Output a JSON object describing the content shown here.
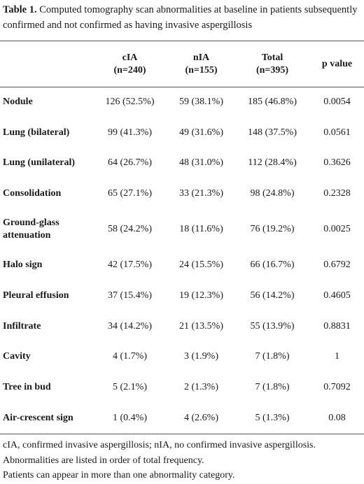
{
  "caption": {
    "label": "Table 1.",
    "text": " Computed tomography scan abnormalities at baseline in patients subsequently confirmed and not confirmed as having invasive aspergillosis"
  },
  "table": {
    "headers": [
      {
        "line1": "",
        "line2": ""
      },
      {
        "line1": "cIA",
        "line2": "(n=240)"
      },
      {
        "line1": "nIA",
        "line2": "(n=155)"
      },
      {
        "line1": "Total",
        "line2": "(n=395)"
      },
      {
        "line1": "",
        "line2": "p value"
      }
    ],
    "rows": [
      {
        "label": "Nodule",
        "cia": "126 (52.5%)",
        "nia": "59 (38.1%)",
        "total": "185 (46.8%)",
        "p": "0.0054"
      },
      {
        "label": "Lung (bilateral)",
        "cia": "99 (41.3%)",
        "nia": "49 (31.6%)",
        "total": "148 (37.5%)",
        "p": "0.0561"
      },
      {
        "label": "Lung (unilateral)",
        "cia": "64 (26.7%)",
        "nia": "48 (31.0%)",
        "total": "112 (28.4%)",
        "p": "0.3626"
      },
      {
        "label": "Consolidation",
        "cia": "65 (27.1%)",
        "nia": "33 (21.3%)",
        "total": "98 (24.8%)",
        "p": "0.2328"
      },
      {
        "label": "Ground-glass attenuation",
        "cia": "58 (24.2%)",
        "nia": "18 (11.6%)",
        "total": "76 (19.2%)",
        "p": "0.0025"
      },
      {
        "label": "Halo sign",
        "cia": "42 (17.5%)",
        "nia": "24 (15.5%)",
        "total": "66 (16.7%)",
        "p": "0.6792"
      },
      {
        "label": "Pleural effusion",
        "cia": "37 (15.4%)",
        "nia": "19 (12.3%)",
        "total": "56 (14.2%)",
        "p": "0.4605"
      },
      {
        "label": "Infiltrate",
        "cia": "34 (14.2%)",
        "nia": "21 (13.5%)",
        "total": "55 (13.9%)",
        "p": "0.8831"
      },
      {
        "label": "Cavity",
        "cia": "4 (1.7%)",
        "nia": "3 (1.9%)",
        "total": "7 (1.8%)",
        "p": "1"
      },
      {
        "label": "Tree in bud",
        "cia": "5 (2.1%)",
        "nia": "2 (1.3%)",
        "total": "7 (1.8%)",
        "p": "0.7092"
      },
      {
        "label": "Air-crescent sign",
        "cia": "1 (0.4%)",
        "nia": "4 (2.6%)",
        "total": "5 (1.3%)",
        "p": "0.08"
      }
    ]
  },
  "footnotes": [
    "cIA, confirmed invasive aspergillosis; nIA, no confirmed invasive aspergillosis.",
    "Abnormalities are listed in order of total frequency.",
    "Patients can appear in more than one abnormality category."
  ]
}
